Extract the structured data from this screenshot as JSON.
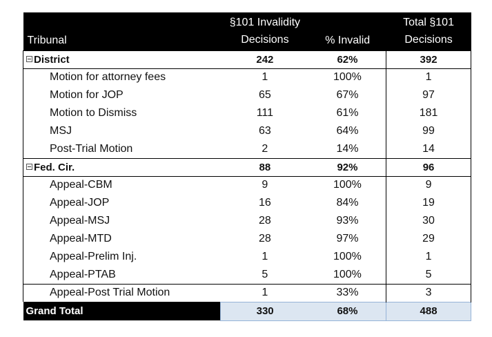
{
  "headers": {
    "tribunal": "Tribunal",
    "invalidity_line1": "§101 Invalidity",
    "invalidity_line2": "Decisions",
    "pct_invalid": "% Invalid",
    "total_line1": "Total §101",
    "total_line2": "Decisions"
  },
  "groups": [
    {
      "label": "District",
      "invalid": "242",
      "pct": "62%",
      "total": "392",
      "rows": [
        {
          "label": "Motion for attorney fees",
          "invalid": "1",
          "pct": "100%",
          "total": "1"
        },
        {
          "label": "Motion for JOP",
          "invalid": "65",
          "pct": "67%",
          "total": "97"
        },
        {
          "label": "Motion to Dismiss",
          "invalid": "111",
          "pct": "61%",
          "total": "181"
        },
        {
          "label": "MSJ",
          "invalid": "63",
          "pct": "64%",
          "total": "99"
        },
        {
          "label": "Post-Trial Motion",
          "invalid": "2",
          "pct": "14%",
          "total": "14"
        }
      ]
    },
    {
      "label": "Fed. Cir.",
      "invalid": "88",
      "pct": "92%",
      "total": "96",
      "rows": [
        {
          "label": "Appeal-CBM",
          "invalid": "9",
          "pct": "100%",
          "total": "9"
        },
        {
          "label": "Appeal-JOP",
          "invalid": "16",
          "pct": "84%",
          "total": "19"
        },
        {
          "label": "Appeal-MSJ",
          "invalid": "28",
          "pct": "93%",
          "total": "30"
        },
        {
          "label": "Appeal-MTD",
          "invalid": "28",
          "pct": "97%",
          "total": "29"
        },
        {
          "label": "Appeal-Prelim Inj.",
          "invalid": "1",
          "pct": "100%",
          "total": "1"
        },
        {
          "label": "Appeal-PTAB",
          "invalid": "5",
          "pct": "100%",
          "total": "5"
        },
        {
          "label": "Appeal-Post Trial Motion",
          "invalid": "1",
          "pct": "33%",
          "total": "3"
        }
      ]
    }
  ],
  "grand_total": {
    "label": "Grand Total",
    "invalid": "330",
    "pct": "68%",
    "total": "488"
  },
  "colors": {
    "header_bg": "#000000",
    "total_highlight": "#dce6f1"
  },
  "icons": {
    "group_toggle": "collapse-minus-icon"
  }
}
